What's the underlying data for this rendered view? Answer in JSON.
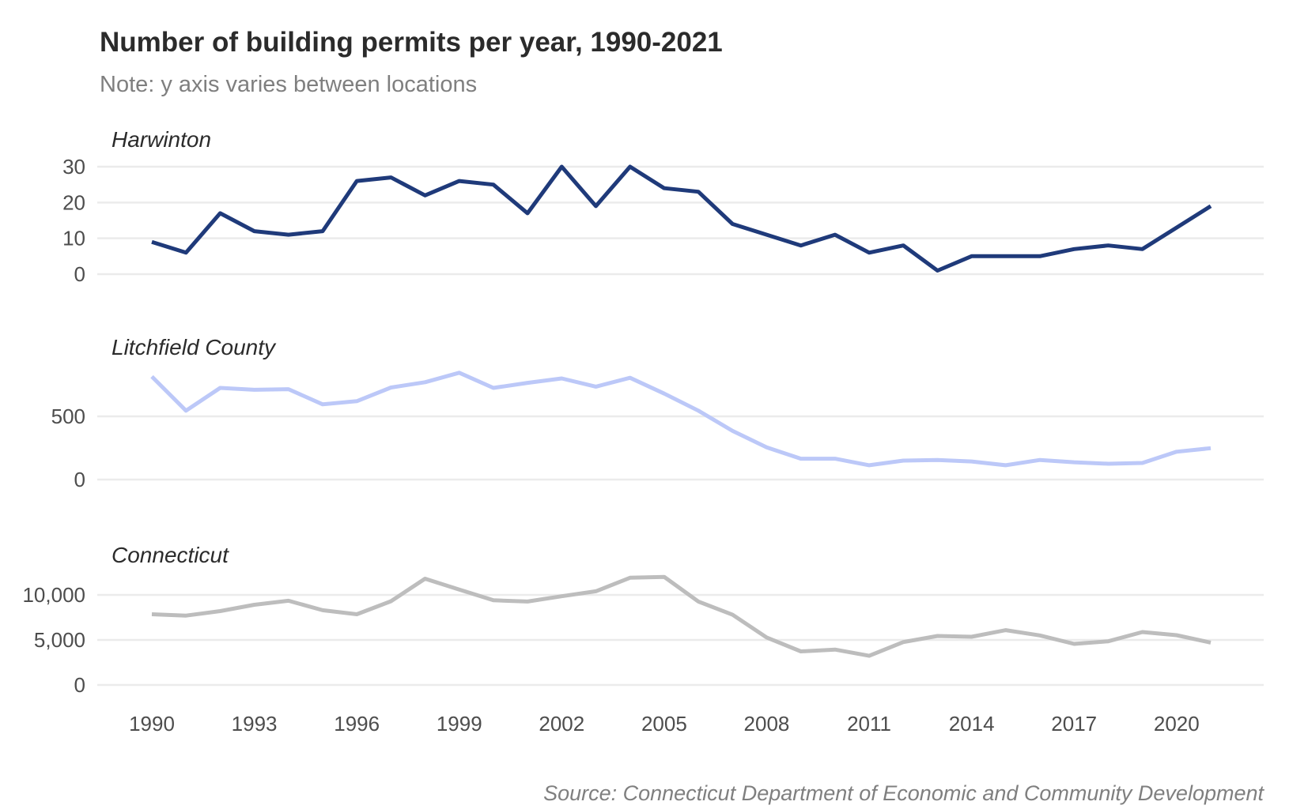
{
  "chart_data": {
    "type": "line",
    "title": "Number of building permits per year, 1990-2021",
    "subtitle": "Note: y axis varies between locations",
    "caption": "Source: Connecticut Department of Economic and Community Development",
    "xlabel": "",
    "ylabel": "",
    "x": [
      1990,
      1991,
      1992,
      1993,
      1994,
      1995,
      1996,
      1997,
      1998,
      1999,
      2000,
      2001,
      2002,
      2003,
      2004,
      2005,
      2006,
      2007,
      2008,
      2009,
      2010,
      2011,
      2012,
      2013,
      2014,
      2015,
      2016,
      2017,
      2018,
      2019,
      2020,
      2021
    ],
    "x_ticks": [
      "1990",
      "1993",
      "1996",
      "1999",
      "2002",
      "2005",
      "2008",
      "2011",
      "2014",
      "2017",
      "2020"
    ],
    "x_tick_values": [
      1990,
      1993,
      1996,
      1999,
      2002,
      2005,
      2008,
      2011,
      2014,
      2017,
      2020
    ],
    "xlim": [
      1989,
      2023
    ],
    "grid": true,
    "legend": "none",
    "panels": [
      {
        "name": "Harwinton",
        "color": "#1f3a7a",
        "ylim": [
          0,
          30
        ],
        "y_ticks": [
          0,
          10,
          20,
          30
        ],
        "y_tick_labels": [
          "0",
          "10",
          "20",
          "30"
        ],
        "values": [
          9,
          6,
          17,
          12,
          11,
          12,
          26,
          27,
          22,
          26,
          25,
          17,
          30,
          19,
          30,
          24,
          23,
          14,
          11,
          8,
          11,
          6,
          8,
          1,
          5,
          5,
          5,
          7,
          8,
          7,
          13,
          19
        ]
      },
      {
        "name": "Litchfield County",
        "color": "#bcc8f8",
        "ylim": [
          0,
          500
        ],
        "y_ticks": [
          0,
          500
        ],
        "y_tick_labels": [
          "0",
          "500"
        ],
        "values": [
          815,
          545,
          725,
          710,
          715,
          595,
          620,
          728,
          770,
          845,
          725,
          765,
          800,
          735,
          805,
          680,
          545,
          385,
          255,
          165,
          165,
          113,
          150,
          155,
          143,
          113,
          155,
          137,
          125,
          131,
          220,
          248
        ]
      },
      {
        "name": "Connecticut",
        "color": "#bdbdbd",
        "ylim": [
          0,
          10000
        ],
        "y_ticks": [
          0,
          5000,
          10000
        ],
        "y_tick_labels": [
          "0",
          "5,000",
          "10,000"
        ],
        "values": [
          7850,
          7700,
          8200,
          8900,
          9350,
          8300,
          7850,
          9300,
          11800,
          10600,
          9400,
          9260,
          9850,
          10400,
          11900,
          12000,
          9260,
          7800,
          5270,
          3730,
          3930,
          3240,
          4760,
          5440,
          5350,
          6090,
          5500,
          4560,
          4850,
          5880,
          5530,
          4700
        ]
      }
    ]
  }
}
